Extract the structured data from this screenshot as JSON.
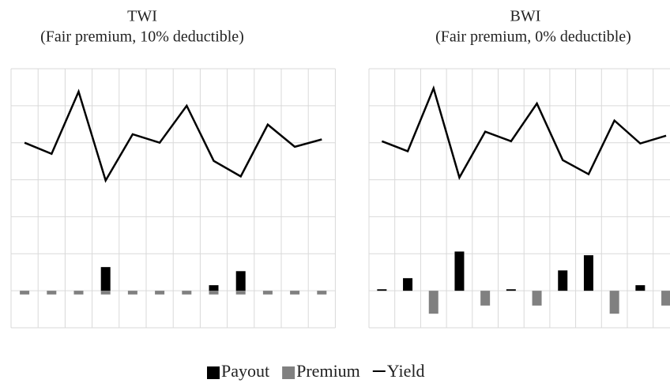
{
  "chart_data": [
    {
      "type": "combo",
      "title": "TWI",
      "subtitle": "(Fair premium, 10% deductible)",
      "ylim": [
        -1,
        6
      ],
      "yticks": [
        -1,
        0,
        1,
        2,
        3,
        4,
        5,
        6
      ],
      "grid": true,
      "series": [
        {
          "name": "Payout",
          "type": "bar",
          "color": "#000000",
          "values": [
            0,
            0,
            0,
            0.64,
            0,
            0,
            0,
            0.15,
            0.53,
            0,
            0,
            0
          ]
        },
        {
          "name": "Premium",
          "type": "bar",
          "color": "#808080",
          "values": [
            -0.1,
            -0.1,
            -0.1,
            -0.1,
            -0.1,
            -0.1,
            -0.1,
            -0.1,
            -0.1,
            -0.1,
            -0.1,
            -0.1
          ]
        },
        {
          "name": "Yield",
          "type": "line",
          "color": "#000000",
          "values": [
            4.0,
            3.7,
            5.38,
            2.98,
            4.23,
            4.0,
            5.0,
            3.51,
            3.09,
            4.49,
            3.89,
            4.09
          ]
        }
      ]
    },
    {
      "type": "combo",
      "title": "BWI",
      "subtitle": "(Fair premium, 0% deductible)",
      "ylim": [
        -1,
        6
      ],
      "yticks": [
        -1,
        0,
        1,
        2,
        3,
        4,
        5,
        6
      ],
      "grid": true,
      "series": [
        {
          "name": "Payout",
          "type": "bar",
          "color": "#000000",
          "values": [
            0.04,
            0.34,
            0,
            1.06,
            0,
            0.04,
            0,
            0.55,
            0.96,
            0,
            0.15,
            0
          ]
        },
        {
          "name": "Premium",
          "type": "bar",
          "color": "#808080",
          "values": [
            0,
            0,
            -0.62,
            0,
            -0.4,
            0,
            -0.4,
            0,
            0,
            -0.62,
            0,
            -0.4
          ]
        },
        {
          "name": "Yield",
          "type": "line",
          "color": "#000000",
          "values": [
            4.04,
            3.77,
            5.47,
            3.06,
            4.3,
            4.04,
            5.06,
            3.53,
            3.15,
            4.6,
            3.98,
            4.19
          ]
        }
      ]
    }
  ]
}
